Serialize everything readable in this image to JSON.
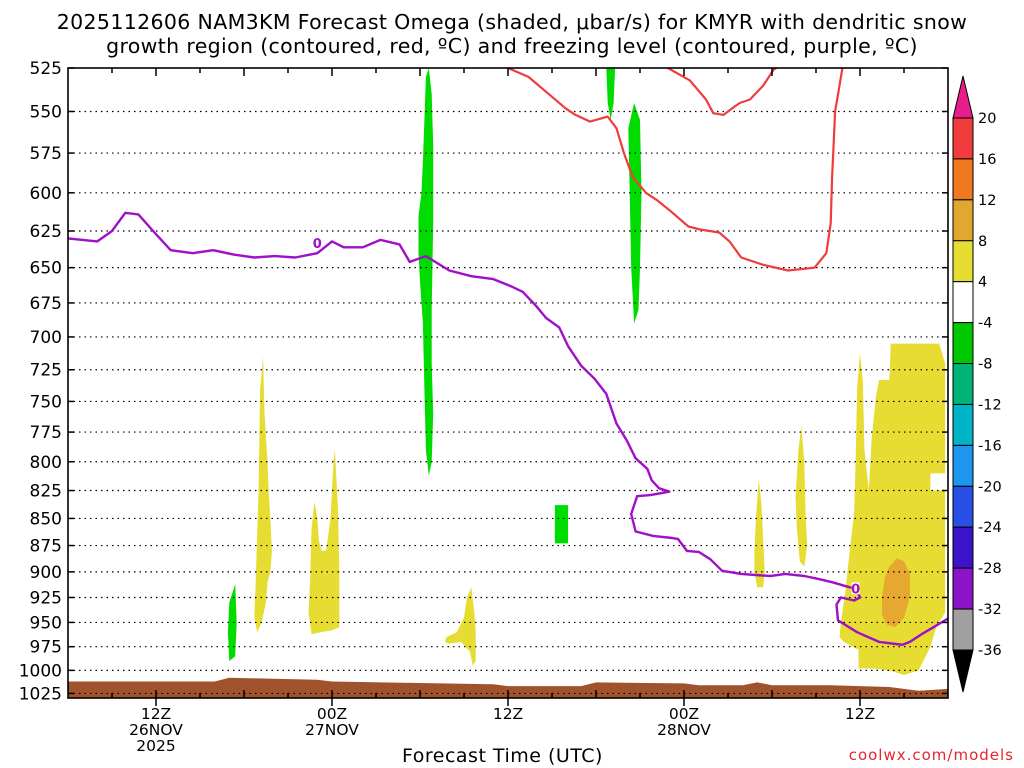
{
  "title_line1": "2025112606 NAM3KM Forecast Omega (shaded, μbar/s) for KMYR with dendritic snow",
  "title_line2": "growth region (contoured, red, ºC) and freezing level (contoured, purple, ºC)",
  "credit": "coolwx.com/models",
  "colors": {
    "dendritic_contour": "#f03c3c",
    "freezing_contour": "#a010c8",
    "terrain": "#a0522d",
    "grid": "#000000"
  },
  "chart_data": {
    "type": "heatmap",
    "xlabel": "Forecast Time (UTC)",
    "x_ticks": [
      {
        "hour": 6,
        "lines": [
          "12Z",
          "26NOV",
          "2025"
        ]
      },
      {
        "hour": 18,
        "lines": [
          "00Z",
          "27NOV"
        ]
      },
      {
        "hour": 30,
        "lines": [
          "12Z"
        ]
      },
      {
        "hour": 42,
        "lines": [
          "00Z",
          "28NOV"
        ]
      },
      {
        "hour": 54,
        "lines": [
          "12Z"
        ]
      }
    ],
    "xlim": [
      0,
      60
    ],
    "y_scale": "log",
    "ylim": [
      1030,
      525
    ],
    "y_ticks": [
      525,
      550,
      575,
      600,
      625,
      650,
      675,
      700,
      725,
      750,
      775,
      800,
      825,
      850,
      875,
      900,
      925,
      950,
      975,
      1000,
      1025
    ],
    "grid": true,
    "colorbar": {
      "labels": [
        "20",
        "16",
        "12",
        "8",
        "4",
        "-4",
        "-8",
        "-12",
        "-16",
        "-20",
        "-24",
        "-28",
        "-32",
        "-36"
      ],
      "colors": [
        "#f03c3c",
        "#f07820",
        "#e0a830",
        "#e6dc32",
        "#ffffff",
        "#00c800",
        "#00b478",
        "#00b4c8",
        "#1e96f0",
        "#2850e6",
        "#3c14c8",
        "#8c14c8",
        "#a0a0a0"
      ],
      "top_arrow_color": "#e61e8c",
      "bottom_arrow_color": "#000000"
    },
    "omega_regions": [
      {
        "color": "#00dc00",
        "points": [
          [
            24.1,
            600
          ],
          [
            24.2,
            580
          ],
          [
            24.3,
            555
          ],
          [
            24.4,
            530
          ],
          [
            24.6,
            525
          ],
          [
            24.8,
            540
          ],
          [
            24.9,
            570
          ],
          [
            24.9,
            620
          ],
          [
            24.8,
            680
          ],
          [
            24.8,
            720
          ],
          [
            24.9,
            760
          ],
          [
            24.8,
            800
          ],
          [
            24.6,
            812
          ],
          [
            24.4,
            790
          ],
          [
            24.3,
            740
          ],
          [
            24.2,
            690
          ],
          [
            24.0,
            660
          ],
          [
            23.9,
            640
          ],
          [
            23.9,
            615
          ]
        ]
      },
      {
        "color": "#00dc00",
        "points": [
          [
            36.7,
            525
          ],
          [
            37.3,
            525
          ],
          [
            37.2,
            545
          ],
          [
            37.0,
            555
          ],
          [
            36.8,
            545
          ]
        ]
      },
      {
        "color": "#00dc00",
        "points": [
          [
            38.2,
            560
          ],
          [
            38.6,
            545
          ],
          [
            39.0,
            555
          ],
          [
            39.1,
            600
          ],
          [
            39.0,
            650
          ],
          [
            38.9,
            680
          ],
          [
            38.6,
            690
          ],
          [
            38.4,
            650
          ],
          [
            38.3,
            600
          ]
        ]
      },
      {
        "color": "#00dc00",
        "points": [
          [
            33.2,
            838
          ],
          [
            34.1,
            838
          ],
          [
            34.1,
            873
          ],
          [
            33.2,
            873
          ]
        ]
      },
      {
        "color": "#00dc00",
        "points": [
          [
            11.0,
            930
          ],
          [
            11.4,
            912
          ],
          [
            11.5,
            950
          ],
          [
            11.4,
            985
          ],
          [
            11.0,
            990
          ],
          [
            10.9,
            960
          ]
        ]
      },
      {
        "color": "#e6dc32",
        "points": [
          [
            12.8,
            910
          ],
          [
            13.0,
            820
          ],
          [
            13.1,
            740
          ],
          [
            13.3,
            715
          ],
          [
            13.4,
            760
          ],
          [
            13.6,
            800
          ],
          [
            13.7,
            830
          ],
          [
            13.8,
            850
          ],
          [
            13.9,
            880
          ],
          [
            13.8,
            900
          ],
          [
            13.6,
            910
          ],
          [
            13.5,
            930
          ],
          [
            13.2,
            950
          ],
          [
            12.9,
            960
          ],
          [
            12.7,
            945
          ]
        ]
      },
      {
        "color": "#e6dc32",
        "points": [
          [
            16.5,
            910
          ],
          [
            16.6,
            860
          ],
          [
            16.8,
            835
          ],
          [
            17.0,
            850
          ],
          [
            17.1,
            870
          ],
          [
            17.3,
            880
          ],
          [
            17.6,
            880
          ],
          [
            17.9,
            850
          ],
          [
            18.1,
            800
          ],
          [
            18.2,
            790
          ],
          [
            18.4,
            840
          ],
          [
            18.5,
            900
          ],
          [
            18.5,
            955
          ],
          [
            18.0,
            958
          ],
          [
            17.2,
            960
          ],
          [
            16.6,
            962
          ],
          [
            16.4,
            940
          ]
        ]
      },
      {
        "color": "#e6dc32",
        "points": [
          [
            25.8,
            965
          ],
          [
            26.5,
            960
          ],
          [
            27.0,
            945
          ],
          [
            27.2,
            925
          ],
          [
            27.5,
            915
          ],
          [
            27.7,
            940
          ],
          [
            27.8,
            960
          ],
          [
            27.8,
            990
          ],
          [
            27.6,
            995
          ],
          [
            27.4,
            980
          ],
          [
            26.8,
            970
          ],
          [
            26.0,
            972
          ],
          [
            25.7,
            970
          ]
        ]
      },
      {
        "color": "#e6dc32",
        "points": [
          [
            46.8,
            880
          ],
          [
            46.9,
            850
          ],
          [
            47.1,
            815
          ],
          [
            47.3,
            840
          ],
          [
            47.4,
            870
          ],
          [
            47.5,
            900
          ],
          [
            47.4,
            915
          ],
          [
            47.0,
            915
          ],
          [
            46.8,
            900
          ]
        ]
      },
      {
        "color": "#e6dc32",
        "points": [
          [
            49.6,
            830
          ],
          [
            49.8,
            790
          ],
          [
            50.0,
            770
          ],
          [
            50.2,
            800
          ],
          [
            50.3,
            850
          ],
          [
            50.4,
            875
          ],
          [
            50.2,
            895
          ],
          [
            49.9,
            890
          ],
          [
            49.7,
            860
          ]
        ]
      },
      {
        "color": "#e6dc32",
        "points": [
          [
            52.7,
            950
          ],
          [
            53.0,
            920
          ],
          [
            53.3,
            880
          ],
          [
            53.6,
            845
          ],
          [
            53.7,
            800
          ],
          [
            53.8,
            740
          ],
          [
            54.0,
            712
          ],
          [
            54.2,
            735
          ],
          [
            54.3,
            790
          ],
          [
            54.6,
            825
          ],
          [
            54.8,
            780
          ],
          [
            55.1,
            745
          ],
          [
            55.3,
            733
          ],
          [
            56.0,
            733
          ],
          [
            56.1,
            705
          ],
          [
            58.0,
            705
          ],
          [
            59.4,
            705
          ],
          [
            59.8,
            720
          ],
          [
            59.8,
            810
          ],
          [
            58.8,
            810
          ],
          [
            58.8,
            825
          ],
          [
            59.8,
            825
          ],
          [
            59.8,
            940
          ],
          [
            59.2,
            955
          ],
          [
            58.8,
            975
          ],
          [
            58.0,
            1000
          ],
          [
            57.0,
            1005
          ],
          [
            56.0,
            1000
          ],
          [
            54.9,
            998
          ],
          [
            53.9,
            998
          ],
          [
            53.9,
            978
          ],
          [
            53.5,
            975
          ],
          [
            52.9,
            970
          ],
          [
            52.6,
            965
          ]
        ]
      },
      {
        "color": "#e6a830",
        "points": [
          [
            55.5,
            925
          ],
          [
            55.7,
            905
          ],
          [
            56.0,
            895
          ],
          [
            56.5,
            887
          ],
          [
            57.0,
            890
          ],
          [
            57.4,
            902
          ],
          [
            57.4,
            925
          ],
          [
            57.0,
            945
          ],
          [
            56.4,
            955
          ],
          [
            55.8,
            952
          ],
          [
            55.5,
            942
          ]
        ]
      }
    ],
    "dendritic_contour": [
      [
        30.0,
        525
      ],
      [
        31.4,
        530
      ],
      [
        32.8,
        540
      ],
      [
        33.9,
        548
      ],
      [
        34.6,
        552
      ],
      [
        35.6,
        556
      ],
      [
        36.8,
        553
      ],
      [
        37.4,
        560
      ],
      [
        37.9,
        575
      ],
      [
        38.5,
        590
      ],
      [
        39.4,
        600
      ],
      [
        40.2,
        605
      ],
      [
        41.1,
        612
      ],
      [
        42.3,
        622
      ],
      [
        43.1,
        624
      ],
      [
        44.4,
        626
      ],
      [
        45.1,
        632
      ],
      [
        45.9,
        643
      ],
      [
        47.4,
        648
      ],
      [
        49.1,
        652
      ],
      [
        50.9,
        650
      ],
      [
        51.7,
        640
      ],
      [
        52.0,
        620
      ],
      [
        52.1,
        590
      ],
      [
        52.2,
        570
      ],
      [
        52.3,
        550
      ],
      [
        52.6,
        535
      ],
      [
        52.8,
        525
      ]
    ],
    "dendritic_contour_2": [
      [
        40.9,
        525
      ],
      [
        42.4,
        532
      ],
      [
        43.5,
        543
      ],
      [
        44.0,
        551
      ],
      [
        44.7,
        552
      ],
      [
        45.3,
        548
      ],
      [
        45.8,
        545
      ],
      [
        46.5,
        543
      ],
      [
        47.4,
        535
      ],
      [
        48.1,
        526
      ],
      [
        48.3,
        525
      ]
    ],
    "freezing_contour": [
      [
        0.0,
        630
      ],
      [
        1.0,
        631
      ],
      [
        2.0,
        632
      ],
      [
        3.0,
        625
      ],
      [
        3.9,
        613
      ],
      [
        4.8,
        614
      ],
      [
        5.8,
        625
      ],
      [
        7.0,
        638
      ],
      [
        8.5,
        640
      ],
      [
        9.9,
        638
      ],
      [
        11.3,
        641
      ],
      [
        12.7,
        643
      ],
      [
        14.1,
        642
      ],
      [
        15.5,
        643
      ],
      [
        17.0,
        640
      ],
      [
        18.0,
        632
      ],
      [
        18.8,
        636
      ],
      [
        20.1,
        636
      ],
      [
        21.3,
        631
      ],
      [
        22.6,
        634
      ],
      [
        23.3,
        646
      ],
      [
        24.4,
        642
      ],
      [
        26.0,
        652
      ],
      [
        27.5,
        656
      ],
      [
        29.0,
        658
      ],
      [
        30.2,
        663
      ],
      [
        31.0,
        667
      ],
      [
        31.9,
        677
      ],
      [
        32.6,
        686
      ],
      [
        33.5,
        693
      ],
      [
        34.1,
        707
      ],
      [
        35.0,
        722
      ],
      [
        35.9,
        732
      ],
      [
        36.7,
        744
      ],
      [
        37.4,
        768
      ],
      [
        38.1,
        782
      ],
      [
        38.7,
        797
      ],
      [
        39.5,
        806
      ],
      [
        39.8,
        816
      ],
      [
        40.3,
        823
      ],
      [
        41.0,
        826
      ],
      [
        39.7,
        829
      ],
      [
        38.8,
        830
      ],
      [
        38.4,
        846
      ],
      [
        38.7,
        862
      ],
      [
        39.9,
        866
      ],
      [
        41.2,
        868
      ],
      [
        41.6,
        869
      ],
      [
        42.2,
        880
      ],
      [
        43.0,
        881
      ],
      [
        43.8,
        888
      ],
      [
        44.6,
        899
      ],
      [
        45.9,
        902
      ],
      [
        46.9,
        903
      ],
      [
        47.9,
        904
      ],
      [
        48.9,
        902
      ],
      [
        50.2,
        904
      ],
      [
        51.2,
        907
      ],
      [
        52.1,
        910
      ],
      [
        53.3,
        915
      ],
      [
        53.7,
        916
      ],
      [
        54.0,
        925
      ],
      [
        53.6,
        928
      ],
      [
        52.7,
        925
      ],
      [
        52.4,
        932
      ],
      [
        52.5,
        948
      ],
      [
        53.8,
        960
      ],
      [
        55.3,
        970
      ],
      [
        56.9,
        973
      ],
      [
        57.4,
        970
      ],
      [
        58.2,
        962
      ],
      [
        59.0,
        955
      ],
      [
        60.0,
        946
      ]
    ],
    "freezing_label": {
      "text": "0",
      "hour": 17.0,
      "pres": 633
    },
    "freezing_label_2": {
      "text": "0",
      "hour": 53.7,
      "pres": 916
    },
    "terrain_top": [
      [
        0,
        1012
      ],
      [
        10,
        1012
      ],
      [
        11,
        1008
      ],
      [
        14,
        1009
      ],
      [
        17,
        1010
      ],
      [
        18,
        1012
      ],
      [
        29,
        1015
      ],
      [
        30,
        1017
      ],
      [
        35,
        1017
      ],
      [
        36,
        1013
      ],
      [
        42,
        1014
      ],
      [
        43,
        1016
      ],
      [
        46,
        1016
      ],
      [
        47,
        1013
      ],
      [
        48,
        1016
      ],
      [
        52,
        1016
      ],
      [
        56,
        1018
      ],
      [
        57,
        1020
      ],
      [
        58,
        1022
      ],
      [
        60,
        1020
      ]
    ]
  }
}
